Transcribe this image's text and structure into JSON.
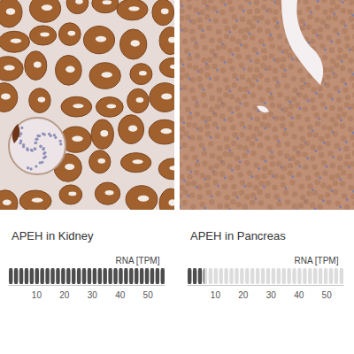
{
  "chart_data": [
    {
      "type": "bar",
      "title": "APEH in Kidney",
      "xlabel": "RNA [TPM]",
      "orientation": "horizontal",
      "values": [
        56
      ],
      "xlim": [
        0,
        56
      ],
      "xticks": [
        10,
        20,
        30,
        40,
        50
      ],
      "color": "#4d4d4d"
    },
    {
      "type": "bar",
      "title": "APEH in Pancreas",
      "xlabel": "RNA [TPM]",
      "orientation": "horizontal",
      "values": [
        6
      ],
      "xlim": [
        0,
        56
      ],
      "xticks": [
        10,
        20,
        30,
        40,
        50
      ],
      "color": "#4d4d4d"
    }
  ]
}
